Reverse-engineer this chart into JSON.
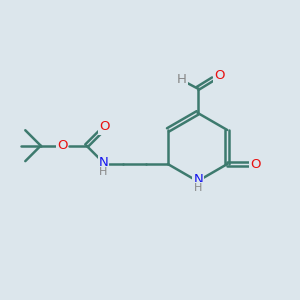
{
  "bg_color": "#dce6ec",
  "bond_color": "#3d7a6e",
  "bond_width": 1.8,
  "atom_colors": {
    "O": "#e81010",
    "N": "#1515ee",
    "H": "#888888"
  }
}
